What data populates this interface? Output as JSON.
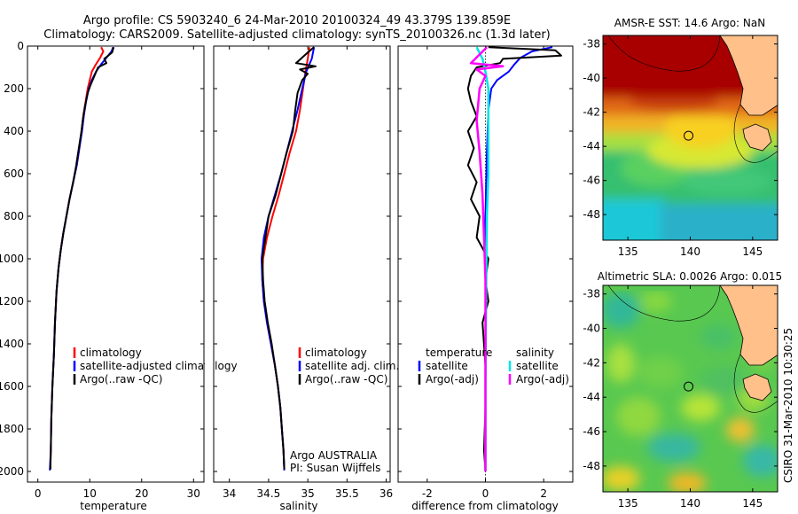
{
  "header": {
    "line1": "Argo profile: CS 5903240_6 24-Mar-2010 20100324_49 43.379S 139.859E",
    "line2": "Climatology: CARS2009. Satellite-adjusted climatology: synTS_20100326.nc (1.3d later)"
  },
  "colors": {
    "climatology": "#ff0000",
    "satellite": "#0000ff",
    "argo": "#000000",
    "satellite_salt": "#00e5e5",
    "argo_salt": "#ff00ff"
  },
  "chart_data": [
    {
      "type": "line",
      "name": "temperature-panel",
      "xlabel": "temperature",
      "ylabel": "",
      "xlim": [
        -2,
        32
      ],
      "ylim": [
        2050,
        0
      ],
      "xticks": [
        0,
        10,
        20,
        30
      ],
      "yticks": [
        0,
        200,
        400,
        600,
        800,
        1000,
        1200,
        1400,
        1600,
        1800,
        2000
      ],
      "legend": [
        "climatology",
        "satellite-adjusted climatology",
        "Argo(..raw -QC)"
      ],
      "series": [
        {
          "name": "climatology",
          "color": "#ff0000",
          "points": [
            [
              12.2,
              5
            ],
            [
              12.6,
              25
            ],
            [
              12.0,
              55
            ],
            [
              11.2,
              85
            ],
            [
              10.4,
              120
            ],
            [
              10.0,
              160
            ],
            [
              9.6,
              200
            ],
            [
              9.2,
              260
            ],
            [
              8.8,
              320
            ],
            [
              8.4,
              400
            ],
            [
              8.0,
              480
            ],
            [
              7.5,
              560
            ],
            [
              6.8,
              640
            ],
            [
              6.1,
              720
            ],
            [
              5.5,
              800
            ],
            [
              4.9,
              880
            ],
            [
              4.4,
              960
            ],
            [
              4.0,
              1040
            ],
            [
              3.6,
              1150
            ],
            [
              3.3,
              1300
            ],
            [
              3.1,
              1450
            ],
            [
              2.8,
              1600
            ],
            [
              2.6,
              1750
            ],
            [
              2.5,
              1900
            ],
            [
              2.4,
              1990
            ]
          ]
        },
        {
          "name": "satellite-adjusted climatology",
          "color": "#0000ff",
          "points": [
            [
              14.5,
              5
            ],
            [
              14.2,
              25
            ],
            [
              13.2,
              55
            ],
            [
              12.2,
              85
            ],
            [
              11.2,
              120
            ],
            [
              10.4,
              160
            ],
            [
              9.8,
              200
            ],
            [
              9.3,
              260
            ],
            [
              8.9,
              320
            ],
            [
              8.5,
              400
            ],
            [
              8.0,
              480
            ],
            [
              7.5,
              560
            ],
            [
              6.8,
              640
            ],
            [
              6.1,
              720
            ],
            [
              5.5,
              800
            ],
            [
              4.9,
              880
            ],
            [
              4.4,
              960
            ],
            [
              4.0,
              1040
            ],
            [
              3.6,
              1150
            ],
            [
              3.3,
              1300
            ],
            [
              3.1,
              1450
            ],
            [
              2.8,
              1600
            ],
            [
              2.6,
              1750
            ],
            [
              2.5,
              1900
            ],
            [
              2.3,
              1995
            ]
          ]
        },
        {
          "name": "Argo(..raw -QC)",
          "color": "#000000",
          "points": [
            [
              14.6,
              5
            ],
            [
              14.3,
              30
            ],
            [
              12.8,
              60
            ],
            [
              13.2,
              80
            ],
            [
              11.6,
              100
            ],
            [
              10.9,
              140
            ],
            [
              10.2,
              180
            ],
            [
              9.6,
              220
            ],
            [
              9.1,
              280
            ],
            [
              8.7,
              340
            ],
            [
              8.4,
              400
            ],
            [
              7.9,
              480
            ],
            [
              7.4,
              560
            ],
            [
              6.8,
              640
            ],
            [
              6.1,
              720
            ],
            [
              5.5,
              800
            ],
            [
              4.9,
              880
            ],
            [
              4.4,
              960
            ],
            [
              4.0,
              1040
            ],
            [
              3.6,
              1150
            ],
            [
              3.3,
              1300
            ],
            [
              3.1,
              1450
            ],
            [
              2.8,
              1600
            ],
            [
              2.6,
              1750
            ],
            [
              2.5,
              1900
            ],
            [
              2.4,
              1990
            ]
          ]
        }
      ]
    },
    {
      "type": "line",
      "name": "salinity-panel",
      "xlabel": "salinity",
      "ylabel": "",
      "xlim": [
        33.8,
        36.05
      ],
      "ylim": [
        2050,
        0
      ],
      "xticks": [
        34,
        34.5,
        35,
        35.5,
        36
      ],
      "xtick_labels": [
        "34",
        "34.5",
        "35",
        "35.5",
        "36"
      ],
      "legend": [
        "climatology",
        "satellite adj. clim.",
        "Argo(..raw -QC)"
      ],
      "annotation": [
        "Argo AUSTRALIA",
        "PI: Susan Wijffels"
      ],
      "series": [
        {
          "name": "climatology",
          "color": "#ff0000",
          "points": [
            [
              35.02,
              5
            ],
            [
              35.0,
              60
            ],
            [
              34.97,
              120
            ],
            [
              34.94,
              200
            ],
            [
              34.9,
              300
            ],
            [
              34.85,
              400
            ],
            [
              34.77,
              500
            ],
            [
              34.7,
              600
            ],
            [
              34.63,
              700
            ],
            [
              34.55,
              800
            ],
            [
              34.48,
              900
            ],
            [
              34.43,
              1000
            ],
            [
              34.42,
              1100
            ],
            [
              34.44,
              1200
            ],
            [
              34.48,
              1300
            ],
            [
              34.53,
              1400
            ],
            [
              34.58,
              1500
            ],
            [
              34.62,
              1600
            ],
            [
              34.65,
              1700
            ],
            [
              34.67,
              1800
            ],
            [
              34.69,
              1900
            ],
            [
              34.7,
              1990
            ]
          ]
        },
        {
          "name": "satellite adj. clim.",
          "color": "#0000ff",
          "points": [
            [
              35.08,
              5
            ],
            [
              35.05,
              60
            ],
            [
              34.98,
              120
            ],
            [
              34.93,
              200
            ],
            [
              34.87,
              300
            ],
            [
              34.8,
              400
            ],
            [
              34.73,
              500
            ],
            [
              34.66,
              600
            ],
            [
              34.58,
              700
            ],
            [
              34.5,
              800
            ],
            [
              34.44,
              900
            ],
            [
              34.41,
              1000
            ],
            [
              34.42,
              1100
            ],
            [
              34.44,
              1200
            ],
            [
              34.48,
              1300
            ],
            [
              34.53,
              1400
            ],
            [
              34.58,
              1500
            ],
            [
              34.62,
              1600
            ],
            [
              34.65,
              1700
            ],
            [
              34.67,
              1800
            ],
            [
              34.69,
              1900
            ],
            [
              34.7,
              1995
            ]
          ]
        },
        {
          "name": "Argo(..raw -QC)",
          "color": "#000000",
          "points": [
            [
              35.08,
              5
            ],
            [
              35.0,
              30
            ],
            [
              34.85,
              80
            ],
            [
              35.1,
              95
            ],
            [
              34.9,
              110
            ],
            [
              35.0,
              130
            ],
            [
              34.93,
              160
            ],
            [
              34.87,
              220
            ],
            [
              34.84,
              300
            ],
            [
              34.81,
              400
            ],
            [
              34.73,
              500
            ],
            [
              34.66,
              600
            ],
            [
              34.59,
              700
            ],
            [
              34.5,
              800
            ],
            [
              34.46,
              900
            ],
            [
              34.42,
              1000
            ],
            [
              34.43,
              1100
            ],
            [
              34.45,
              1200
            ],
            [
              34.49,
              1300
            ],
            [
              34.54,
              1400
            ],
            [
              34.58,
              1500
            ],
            [
              34.62,
              1600
            ],
            [
              34.65,
              1700
            ],
            [
              34.67,
              1800
            ],
            [
              34.69,
              1900
            ],
            [
              34.7,
              1990
            ]
          ]
        }
      ]
    },
    {
      "type": "line",
      "name": "difference-panel",
      "xlabel": "difference from climatology",
      "ylabel": "",
      "xlim": [
        -3.0,
        3.0
      ],
      "ylim": [
        2050,
        0
      ],
      "xticks": [
        -2,
        0,
        2
      ],
      "legend_left_title": "temperature",
      "legend_left": [
        "satellite",
        "Argo(-adj)"
      ],
      "legend_right_title": "salinity",
      "legend_right": [
        "satellite",
        "Argo(-adj)"
      ],
      "series": [
        {
          "name": "temperature satellite",
          "color": "#0000ff",
          "points": [
            [
              2.3,
              5
            ],
            [
              1.6,
              25
            ],
            [
              1.2,
              55
            ],
            [
              1.0,
              85
            ],
            [
              0.8,
              120
            ],
            [
              0.4,
              160
            ],
            [
              0.2,
              200
            ],
            [
              0.1,
              300
            ],
            [
              0.05,
              500
            ],
            [
              0,
              800
            ],
            [
              0,
              1200
            ],
            [
              0,
              1600
            ],
            [
              0,
              2000
            ]
          ]
        },
        {
          "name": "temperature Argo(-adj)",
          "color": "#000000",
          "points": [
            [
              0.1,
              5
            ],
            [
              2.4,
              20
            ],
            [
              2.6,
              45
            ],
            [
              0.6,
              60
            ],
            [
              0.5,
              80
            ],
            [
              -0.3,
              100
            ],
            [
              -0.5,
              140
            ],
            [
              -0.6,
              200
            ],
            [
              -0.5,
              260
            ],
            [
              -0.3,
              330
            ],
            [
              -0.6,
              400
            ],
            [
              -0.4,
              480
            ],
            [
              -0.6,
              560
            ],
            [
              -0.3,
              640
            ],
            [
              -0.5,
              720
            ],
            [
              -0.2,
              800
            ],
            [
              -0.3,
              900
            ],
            [
              0.1,
              1000
            ],
            [
              0,
              1100
            ],
            [
              0.1,
              1200
            ],
            [
              -0.1,
              1300
            ],
            [
              0,
              1500
            ],
            [
              0,
              1700
            ],
            [
              -0.05,
              1900
            ],
            [
              0,
              1995
            ]
          ]
        },
        {
          "name": "salinity satellite",
          "color": "#00e5e5",
          "points": [
            [
              -0.3,
              5
            ],
            [
              -0.1,
              60
            ],
            [
              0,
              120
            ],
            [
              0.1,
              200
            ],
            [
              0.1,
              400
            ],
            [
              0.1,
              600
            ],
            [
              0.05,
              800
            ],
            [
              0.02,
              1200
            ],
            [
              0,
              1600
            ],
            [
              0,
              2000
            ]
          ]
        },
        {
          "name": "salinity Argo(-adj)",
          "color": "#ff00ff",
          "points": [
            [
              0.05,
              5
            ],
            [
              -0.5,
              80
            ],
            [
              0.6,
              95
            ],
            [
              -0.3,
              110
            ],
            [
              0,
              140
            ],
            [
              -0.2,
              200
            ],
            [
              -0.3,
              350
            ],
            [
              -0.2,
              500
            ],
            [
              -0.1,
              700
            ],
            [
              -0.05,
              900
            ],
            [
              0,
              1100
            ],
            [
              0,
              1500
            ],
            [
              0,
              2000
            ]
          ]
        }
      ]
    },
    {
      "type": "heatmap",
      "name": "sst-map",
      "title": "AMSR-E SST: 14.6 Argo: NaN",
      "xlim": [
        133,
        147
      ],
      "ylim": [
        -49.5,
        -37.5
      ],
      "xticks": [
        135,
        140,
        145
      ],
      "yticks": [
        -38,
        -40,
        -42,
        -44,
        -46,
        -48
      ],
      "marker": {
        "lon": 139.859,
        "lat": -43.379
      }
    },
    {
      "type": "heatmap",
      "name": "sla-map",
      "title": "Altimetric SLA: 0.0026 Argo: 0.015",
      "xlim": [
        133,
        147
      ],
      "ylim": [
        -49.5,
        -37.5
      ],
      "xticks": [
        135,
        140,
        145
      ],
      "yticks": [
        -38,
        -40,
        -42,
        -44,
        -46,
        -48
      ],
      "marker": {
        "lon": 139.859,
        "lat": -43.379
      }
    }
  ],
  "stamp": "CSIRO 31-Mar-2010 10:30:25"
}
